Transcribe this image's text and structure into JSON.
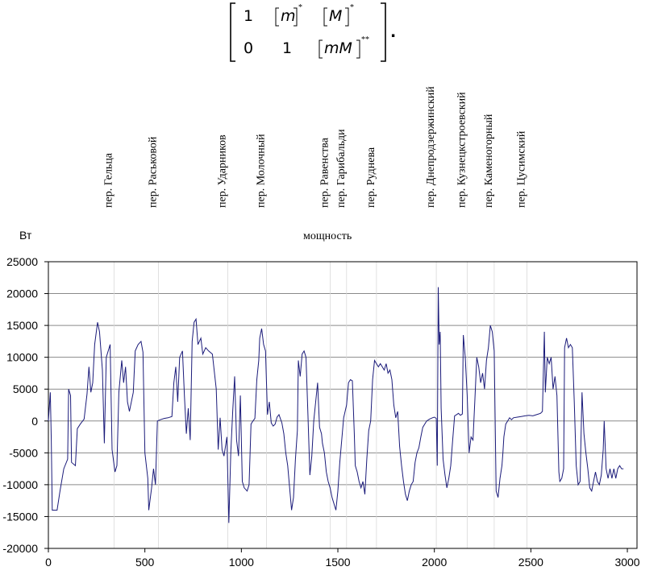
{
  "matrix": {
    "row1": [
      "1",
      "m",
      "*",
      "M",
      "*"
    ],
    "row2": [
      "0",
      "1",
      "mM",
      "**"
    ],
    "trailing": "."
  },
  "chart_data": {
    "type": "line",
    "title": "мощность",
    "ylabel": "Вт",
    "xlabel": "",
    "xlim": [
      0,
      3050
    ],
    "ylim": [
      -20000,
      25000
    ],
    "yticks": [
      25000,
      20000,
      15000,
      10000,
      5000,
      0,
      -5000,
      -10000,
      -15000,
      -20000
    ],
    "xticks": [
      0,
      500,
      1000,
      1500,
      2000,
      2500,
      3000
    ],
    "grid": "horizontal",
    "line_color": "#1b1b7a",
    "streets": [
      {
        "name": "пер. Гельца",
        "x": 340
      },
      {
        "name": "пер. Раськовой",
        "x": 570
      },
      {
        "name": "пер. Ударников",
        "x": 930
      },
      {
        "name": "пер. Молочный",
        "x": 1130
      },
      {
        "name": "пер. Равенства",
        "x": 1460
      },
      {
        "name": "пер. Гарибальди",
        "x": 1545
      },
      {
        "name": "пер. Руднева",
        "x": 1700
      },
      {
        "name": "пер. Днепродзержинский",
        "x": 2010
      },
      {
        "name": "пер. Кузнецкстроевский",
        "x": 2170
      },
      {
        "name": "пер. Каменогорный",
        "x": 2310
      },
      {
        "name": "пер. Цусимский",
        "x": 2480
      }
    ],
    "series": [
      {
        "name": "мощность",
        "points": [
          [
            0,
            0
          ],
          [
            10,
            4500
          ],
          [
            15,
            -3000
          ],
          [
            20,
            -14000
          ],
          [
            45,
            -14000
          ],
          [
            60,
            -11000
          ],
          [
            80,
            -7500
          ],
          [
            100,
            -6000
          ],
          [
            105,
            5000
          ],
          [
            115,
            4000
          ],
          [
            120,
            -6500
          ],
          [
            140,
            -7000
          ],
          [
            150,
            -1200
          ],
          [
            165,
            -500
          ],
          [
            185,
            300
          ],
          [
            200,
            4200
          ],
          [
            210,
            8500
          ],
          [
            220,
            4500
          ],
          [
            230,
            6000
          ],
          [
            240,
            12000
          ],
          [
            255,
            15500
          ],
          [
            265,
            14000
          ],
          [
            280,
            8000
          ],
          [
            290,
            -3500
          ],
          [
            300,
            10000
          ],
          [
            320,
            12000
          ],
          [
            330,
            -4500
          ],
          [
            345,
            -8000
          ],
          [
            355,
            -7000
          ],
          [
            365,
            4500
          ],
          [
            380,
            9500
          ],
          [
            390,
            6000
          ],
          [
            400,
            8500
          ],
          [
            410,
            3000
          ],
          [
            420,
            1500
          ],
          [
            440,
            4500
          ],
          [
            450,
            11000
          ],
          [
            465,
            12000
          ],
          [
            480,
            12500
          ],
          [
            490,
            10800
          ],
          [
            500,
            -5000
          ],
          [
            515,
            -9000
          ],
          [
            520,
            -14000
          ],
          [
            535,
            -10500
          ],
          [
            545,
            -7500
          ],
          [
            555,
            -10000
          ],
          [
            565,
            0
          ],
          [
            580,
            200
          ],
          [
            600,
            400
          ],
          [
            620,
            500
          ],
          [
            640,
            700
          ],
          [
            650,
            6000
          ],
          [
            660,
            8500
          ],
          [
            670,
            3000
          ],
          [
            680,
            10000
          ],
          [
            695,
            11000
          ],
          [
            705,
            4000
          ],
          [
            715,
            -2000
          ],
          [
            725,
            2000
          ],
          [
            735,
            -3000
          ],
          [
            745,
            12500
          ],
          [
            755,
            15500
          ],
          [
            765,
            16000
          ],
          [
            775,
            12000
          ],
          [
            790,
            13000
          ],
          [
            800,
            10500
          ],
          [
            815,
            11500
          ],
          [
            830,
            11000
          ],
          [
            850,
            10500
          ],
          [
            870,
            5000
          ],
          [
            880,
            -4500
          ],
          [
            890,
            500
          ],
          [
            900,
            -4500
          ],
          [
            910,
            -5500
          ],
          [
            925,
            -2500
          ],
          [
            935,
            -16000
          ],
          [
            945,
            -5000
          ],
          [
            955,
            1500
          ],
          [
            965,
            7000
          ],
          [
            975,
            -3000
          ],
          [
            985,
            -5500
          ],
          [
            995,
            4000
          ],
          [
            1005,
            -9500
          ],
          [
            1015,
            -10500
          ],
          [
            1030,
            -11000
          ],
          [
            1040,
            -10000
          ],
          [
            1050,
            -500
          ],
          [
            1060,
            0
          ],
          [
            1070,
            400
          ],
          [
            1080,
            6500
          ],
          [
            1090,
            9500
          ],
          [
            1095,
            13000
          ],
          [
            1105,
            14500
          ],
          [
            1115,
            12000
          ],
          [
            1125,
            11000
          ],
          [
            1135,
            1000
          ],
          [
            1145,
            3000
          ],
          [
            1155,
            -300
          ],
          [
            1165,
            -800
          ],
          [
            1175,
            -500
          ],
          [
            1185,
            600
          ],
          [
            1195,
            1000
          ],
          [
            1210,
            -300
          ],
          [
            1220,
            -2000
          ],
          [
            1230,
            -5000
          ],
          [
            1240,
            -7000
          ],
          [
            1250,
            -10500
          ],
          [
            1260,
            -14000
          ],
          [
            1270,
            -12000
          ],
          [
            1280,
            -6000
          ],
          [
            1290,
            -1500
          ],
          [
            1295,
            9500
          ],
          [
            1305,
            7000
          ],
          [
            1315,
            10500
          ],
          [
            1325,
            11000
          ],
          [
            1335,
            10000
          ],
          [
            1345,
            1000
          ],
          [
            1355,
            -8500
          ],
          [
            1365,
            -5500
          ],
          [
            1375,
            0
          ],
          [
            1385,
            3000
          ],
          [
            1395,
            6000
          ],
          [
            1405,
            -1000
          ],
          [
            1415,
            -2000
          ],
          [
            1420,
            -3500
          ],
          [
            1430,
            -5000
          ],
          [
            1440,
            -8000
          ],
          [
            1450,
            -9500
          ],
          [
            1460,
            -10500
          ],
          [
            1470,
            -12000
          ],
          [
            1480,
            -13000
          ],
          [
            1490,
            -14000
          ],
          [
            1500,
            -11000
          ],
          [
            1510,
            -6500
          ],
          [
            1520,
            -3000
          ],
          [
            1530,
            500
          ],
          [
            1545,
            2500
          ],
          [
            1555,
            6000
          ],
          [
            1565,
            6500
          ],
          [
            1575,
            6300
          ],
          [
            1585,
            -2000
          ],
          [
            1590,
            -7000
          ],
          [
            1600,
            -8000
          ],
          [
            1610,
            -9500
          ],
          [
            1620,
            -10500
          ],
          [
            1630,
            -9500
          ],
          [
            1640,
            -11500
          ],
          [
            1650,
            -6000
          ],
          [
            1660,
            -1500
          ],
          [
            1670,
            0
          ],
          [
            1680,
            6500
          ],
          [
            1690,
            9500
          ],
          [
            1700,
            9000
          ],
          [
            1710,
            8500
          ],
          [
            1720,
            9000
          ],
          [
            1730,
            8500
          ],
          [
            1740,
            8000
          ],
          [
            1750,
            9000
          ],
          [
            1760,
            7500
          ],
          [
            1770,
            8000
          ],
          [
            1780,
            6500
          ],
          [
            1790,
            2500
          ],
          [
            1800,
            500
          ],
          [
            1810,
            1500
          ],
          [
            1820,
            -4000
          ],
          [
            1830,
            -7000
          ],
          [
            1840,
            -9500
          ],
          [
            1850,
            -11500
          ],
          [
            1860,
            -12500
          ],
          [
            1870,
            -11000
          ],
          [
            1880,
            -10000
          ],
          [
            1890,
            -9500
          ],
          [
            1900,
            -6500
          ],
          [
            1910,
            -5000
          ],
          [
            1920,
            -4200
          ],
          [
            1930,
            -2500
          ],
          [
            1940,
            -1000
          ],
          [
            1950,
            -500
          ],
          [
            1960,
            0
          ],
          [
            1975,
            300
          ],
          [
            1990,
            500
          ],
          [
            2000,
            600
          ],
          [
            2010,
            400
          ],
          [
            2015,
            -7000
          ],
          [
            2020,
            21000
          ],
          [
            2025,
            12000
          ],
          [
            2030,
            14000
          ],
          [
            2035,
            2000
          ],
          [
            2045,
            -6000
          ],
          [
            2055,
            -8500
          ],
          [
            2065,
            -10500
          ],
          [
            2075,
            -9000
          ],
          [
            2085,
            -7000
          ],
          [
            2095,
            -3000
          ],
          [
            2105,
            800
          ],
          [
            2115,
            1000
          ],
          [
            2125,
            1200
          ],
          [
            2135,
            900
          ],
          [
            2145,
            1100
          ],
          [
            2150,
            13500
          ],
          [
            2160,
            10000
          ],
          [
            2170,
            4000
          ],
          [
            2180,
            -5000
          ],
          [
            2190,
            -2500
          ],
          [
            2200,
            -3000
          ],
          [
            2210,
            3500
          ],
          [
            2220,
            10000
          ],
          [
            2230,
            8500
          ],
          [
            2240,
            6000
          ],
          [
            2250,
            7500
          ],
          [
            2260,
            5000
          ],
          [
            2270,
            9500
          ],
          [
            2280,
            11500
          ],
          [
            2290,
            15000
          ],
          [
            2300,
            14000
          ],
          [
            2310,
            11000
          ],
          [
            2320,
            -11000
          ],
          [
            2330,
            -12000
          ],
          [
            2340,
            -9000
          ],
          [
            2350,
            -7000
          ],
          [
            2355,
            -5000
          ],
          [
            2360,
            -2500
          ],
          [
            2370,
            -500
          ],
          [
            2380,
            0
          ],
          [
            2390,
            500
          ],
          [
            2400,
            200
          ],
          [
            2410,
            500
          ],
          [
            2430,
            600
          ],
          [
            2450,
            700
          ],
          [
            2470,
            800
          ],
          [
            2490,
            900
          ],
          [
            2510,
            800
          ],
          [
            2530,
            1000
          ],
          [
            2550,
            1200
          ],
          [
            2560,
            1500
          ],
          [
            2570,
            14000
          ],
          [
            2575,
            4500
          ],
          [
            2585,
            10000
          ],
          [
            2595,
            9000
          ],
          [
            2605,
            10000
          ],
          [
            2615,
            5000
          ],
          [
            2625,
            7000
          ],
          [
            2635,
            4000
          ],
          [
            2645,
            -8000
          ],
          [
            2650,
            -9500
          ],
          [
            2660,
            -9000
          ],
          [
            2670,
            -7500
          ],
          [
            2675,
            11500
          ],
          [
            2685,
            13000
          ],
          [
            2695,
            11500
          ],
          [
            2705,
            12000
          ],
          [
            2715,
            11500
          ],
          [
            2725,
            3000
          ],
          [
            2735,
            -7000
          ],
          [
            2745,
            -10000
          ],
          [
            2755,
            -9500
          ],
          [
            2765,
            4500
          ],
          [
            2775,
            -2000
          ],
          [
            2785,
            -5000
          ],
          [
            2795,
            -7500
          ],
          [
            2805,
            -10500
          ],
          [
            2815,
            -11000
          ],
          [
            2825,
            -9500
          ],
          [
            2835,
            -8000
          ],
          [
            2845,
            -9500
          ],
          [
            2855,
            -10000
          ],
          [
            2865,
            -8500
          ],
          [
            2875,
            -4500
          ],
          [
            2880,
            0
          ],
          [
            2890,
            -7500
          ],
          [
            2900,
            -9000
          ],
          [
            2910,
            -7500
          ],
          [
            2920,
            -9000
          ],
          [
            2930,
            -7500
          ],
          [
            2940,
            -9000
          ],
          [
            2950,
            -7500
          ],
          [
            2960,
            -7000
          ],
          [
            2970,
            -7500
          ],
          [
            2980,
            -7500
          ]
        ]
      }
    ]
  }
}
